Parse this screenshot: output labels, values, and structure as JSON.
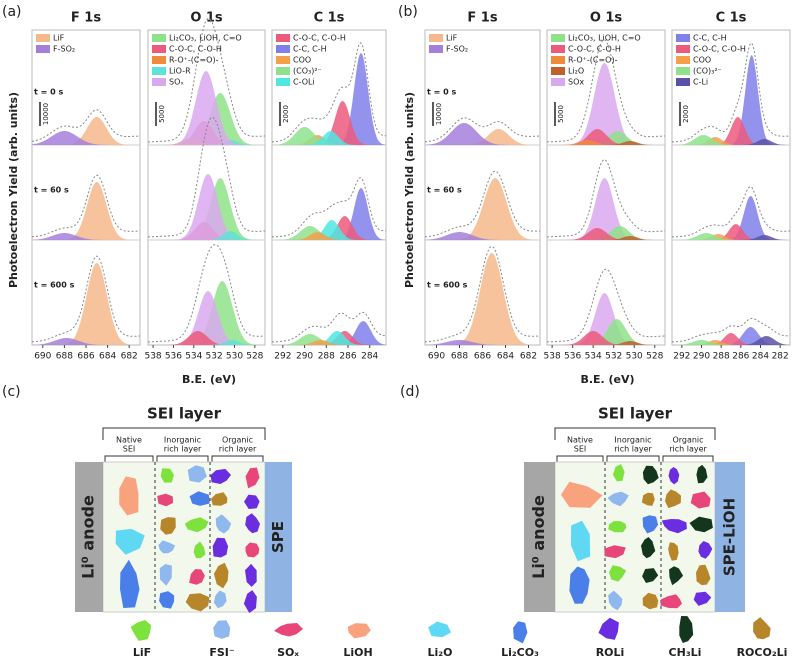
{
  "panel_a": {
    "label": "(a)",
    "y_label": "Photoelectron Yield (arb. units)",
    "x_label": "B.E. (eV)",
    "times": [
      "t = 0 s",
      "t = 60 s",
      "t = 600 s"
    ],
    "columns": [
      {
        "title": "F 1s",
        "xlim": [
          691,
          681
        ],
        "xticks": [
          690,
          688,
          686,
          684,
          682
        ],
        "scale_bar": 10000,
        "legend": [
          {
            "name": "LiF",
            "color": "#f6b98c"
          },
          {
            "name": "F-SO₂",
            "color": "#a47fdc"
          }
        ]
      },
      {
        "title": "O 1s",
        "xlim": [
          538.5,
          527
        ],
        "xticks": [
          538,
          536,
          534,
          532,
          530,
          528
        ],
        "scale_bar": 5000,
        "legend": [
          {
            "name": "Li₂CO₃, LiOH, C=O",
            "color": "#8fe28a"
          },
          {
            "name": "C-O-C, C-O-H",
            "color": "#ec5a7c"
          },
          {
            "name": "R-O⁺-(C=O)-",
            "color": "#f28a3c"
          },
          {
            "name": "LiO-R",
            "color": "#5ee3d6"
          },
          {
            "name": "SOₓ",
            "color": "#d9a9f0"
          }
        ]
      },
      {
        "title": "C 1s",
        "xlim": [
          293,
          282.5
        ],
        "xticks": [
          292,
          290,
          288,
          286,
          284
        ],
        "scale_bar": 2000,
        "legend": [
          {
            "name": "C-O-C, C-O-H",
            "color": "#ec5a7c"
          },
          {
            "name": "C-C, C-H",
            "color": "#8080ea"
          },
          {
            "name": "COO",
            "color": "#f59f4a"
          },
          {
            "name": "(CO₃)²⁻",
            "color": "#8ee28e"
          },
          {
            "name": "C-OLi",
            "color": "#4ee8e2"
          }
        ]
      }
    ]
  },
  "panel_b": {
    "label": "(b)",
    "y_label": "Photoelectron Yield (arb. units)",
    "x_label": "B.E. (eV)",
    "times": [
      "t = 0 s",
      "t = 60 s",
      "t = 600 s"
    ],
    "columns": [
      {
        "title": "F 1s",
        "xlim": [
          691,
          681
        ],
        "xticks": [
          690,
          688,
          686,
          684,
          682
        ],
        "scale_bar": 10000,
        "legend": [
          {
            "name": "LiF",
            "color": "#f6b98c"
          },
          {
            "name": "F-SO₂",
            "color": "#a47fdc"
          }
        ]
      },
      {
        "title": "O 1s",
        "xlim": [
          538.5,
          527
        ],
        "xticks": [
          538,
          536,
          534,
          532,
          530,
          528
        ],
        "scale_bar": 5000,
        "legend": [
          {
            "name": "Li₂CO₃, LiOH, C=O",
            "color": "#8fe28a"
          },
          {
            "name": "C-O-C, C-O-H",
            "color": "#ec5a7c"
          },
          {
            "name": "R-O⁺-(C=O)-",
            "color": "#f28a3c"
          },
          {
            "name": "Li₂O",
            "color": "#c0602c"
          },
          {
            "name": "SOx",
            "color": "#d9a9f0"
          }
        ]
      },
      {
        "title": "C 1s",
        "xlim": [
          293,
          281
        ],
        "xticks": [
          292,
          290,
          288,
          286,
          284,
          282
        ],
        "scale_bar": 2000,
        "legend": [
          {
            "name": "C-C, C-H",
            "color": "#8080ea"
          },
          {
            "name": "C-O-C, C-O-H",
            "color": "#ec5a7c"
          },
          {
            "name": "COO",
            "color": "#f59f4a"
          },
          {
            "name": "(CO)₃²⁻",
            "color": "#8ee28e"
          },
          {
            "name": "C-Li",
            "color": "#5a52a8"
          }
        ]
      }
    ]
  },
  "panel_c": {
    "label": "(c)",
    "sei": "SEI layer",
    "native": [
      "Native",
      "SEI"
    ],
    "inorganic": [
      "Inorganic",
      "rich layer"
    ],
    "organic": [
      "Organic",
      "rich layer"
    ],
    "anode": "Li⁰ anode",
    "electrolyte": "SPE"
  },
  "panel_d": {
    "label": "(d)",
    "sei": "SEI layer",
    "native": [
      "Native",
      "SEI"
    ],
    "inorganic": [
      "Inorganic",
      "rich layer"
    ],
    "organic": [
      "Organic",
      "rich layer"
    ],
    "anode": "Li⁰ anode",
    "electrolyte": "SPE-LiOH"
  },
  "legend": [
    {
      "name": "LiF",
      "color": "#7ee23e"
    },
    {
      "name": "FSI⁻",
      "color": "#8fb8ee"
    },
    {
      "name": "SOₓ",
      "color": "#e8467a"
    },
    {
      "name": "LiOH",
      "color": "#f9a27e"
    },
    {
      "name": "Li₂O",
      "color": "#5fd8f4"
    },
    {
      "name": "Li₂CO₃",
      "color": "#4a7ee8"
    },
    {
      "name": "ROLi",
      "color": "#6a2ee0"
    },
    {
      "name": "CH₃Li",
      "color": "#14361c"
    },
    {
      "name": "ROCO₂Li",
      "color": "#b8862a"
    }
  ]
}
